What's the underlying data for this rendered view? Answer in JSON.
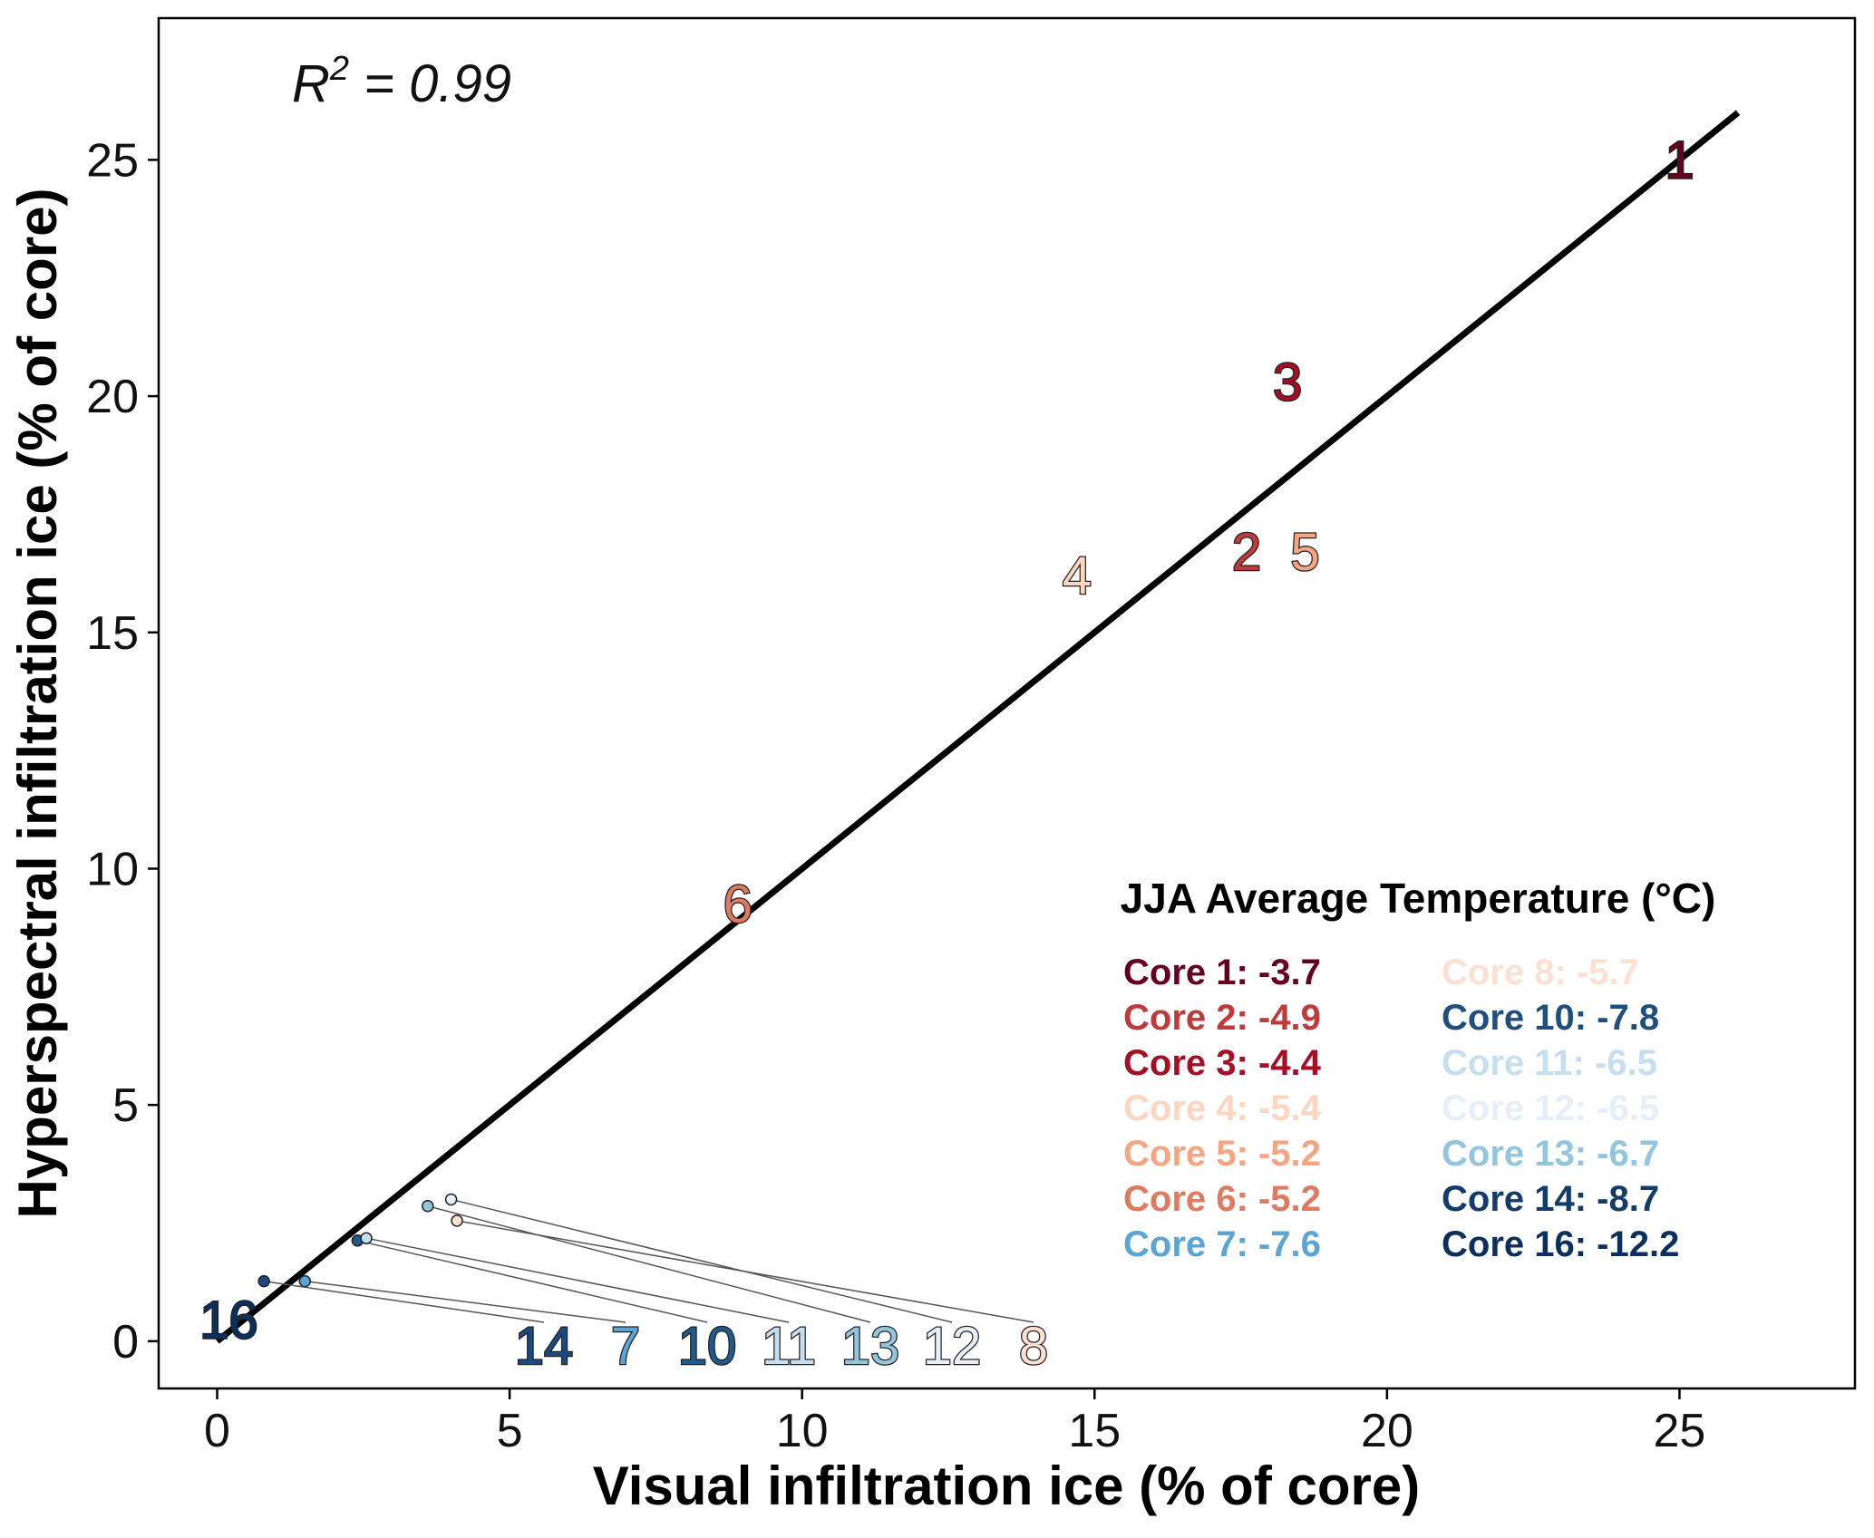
{
  "chart_data": {
    "type": "scatter",
    "title": "",
    "xlabel": "Visual infiltration ice (% of core)",
    "ylabel": "Hyperspectral infiltration ice (% of core)",
    "xlim": [
      -1,
      28
    ],
    "ylim": [
      -1,
      28
    ],
    "xticks": [
      0,
      5,
      10,
      15,
      20,
      25
    ],
    "yticks": [
      0,
      5,
      10,
      15,
      20,
      25
    ],
    "grid": false,
    "annotation": {
      "prefix": "R",
      "sup": "2",
      "suffix": " = 0.99"
    },
    "fit_line": {
      "x": [
        0,
        26
      ],
      "y": [
        0,
        26
      ]
    },
    "points": [
      {
        "label": "1",
        "x": 25.0,
        "y": 25.0,
        "color": "#67001f"
      },
      {
        "label": "2",
        "x": 17.6,
        "y": 16.7,
        "color": "#c0393b"
      },
      {
        "label": "3",
        "x": 18.3,
        "y": 20.3,
        "color": "#a50f26"
      },
      {
        "label": "4",
        "x": 14.7,
        "y": 16.2,
        "color": "#fdd5c0"
      },
      {
        "label": "5",
        "x": 18.6,
        "y": 16.7,
        "color": "#f4a582"
      },
      {
        "label": "6",
        "x": 8.9,
        "y": 9.25,
        "color": "#e07a5f"
      },
      {
        "label": "7",
        "x": 1.5,
        "y": 1.27,
        "color": "#5aa5d5"
      },
      {
        "label": "8",
        "x": 4.1,
        "y": 2.55,
        "color": "#fde0d2"
      },
      {
        "label": "10",
        "x": 2.4,
        "y": 2.13,
        "color": "#1f5a8f"
      },
      {
        "label": "11",
        "x": 2.55,
        "y": 2.18,
        "color": "#c6dff0"
      },
      {
        "label": "12",
        "x": 4.0,
        "y": 3.0,
        "color": "#e6eff8"
      },
      {
        "label": "13",
        "x": 3.6,
        "y": 2.86,
        "color": "#92c5de"
      },
      {
        "label": "14",
        "x": 0.8,
        "y": 1.27,
        "color": "#1a4a80"
      },
      {
        "label": "16",
        "x": 0.2,
        "y": 0.45,
        "color": "#0b2f5f"
      }
    ],
    "legend": {
      "title": "JJA Average Temperature (°C)",
      "placement": "lower-right",
      "columns": [
        [
          {
            "text": "Core 1: -3.7",
            "color": "#67001f"
          },
          {
            "text": "Core 2: -4.9",
            "color": "#c0393b"
          },
          {
            "text": "Core 3: -4.4",
            "color": "#a50f26"
          },
          {
            "text": "Core 4: -5.4",
            "color": "#fdd5c0"
          },
          {
            "text": "Core 5: -5.2",
            "color": "#f4a582"
          },
          {
            "text": "Core 6: -5.2",
            "color": "#e07a5f"
          },
          {
            "text": "Core 7: -7.6",
            "color": "#5aa5d5"
          }
        ],
        [
          {
            "text": "Core 8: -5.7",
            "color": "#fde0d2"
          },
          {
            "text": "Core 10: -7.8",
            "color": "#1f4f7f"
          },
          {
            "text": "Core 11: -6.5",
            "color": "#c6dff0"
          },
          {
            "text": "Core 12: -6.5",
            "color": "#e6eff8"
          },
          {
            "text": "Core 13: -6.7",
            "color": "#92c5de"
          },
          {
            "text": "Core 14: -8.7",
            "color": "#123c6a"
          },
          {
            "text": "Core 16: -12.2",
            "color": "#0b2f5f"
          }
        ]
      ]
    }
  }
}
